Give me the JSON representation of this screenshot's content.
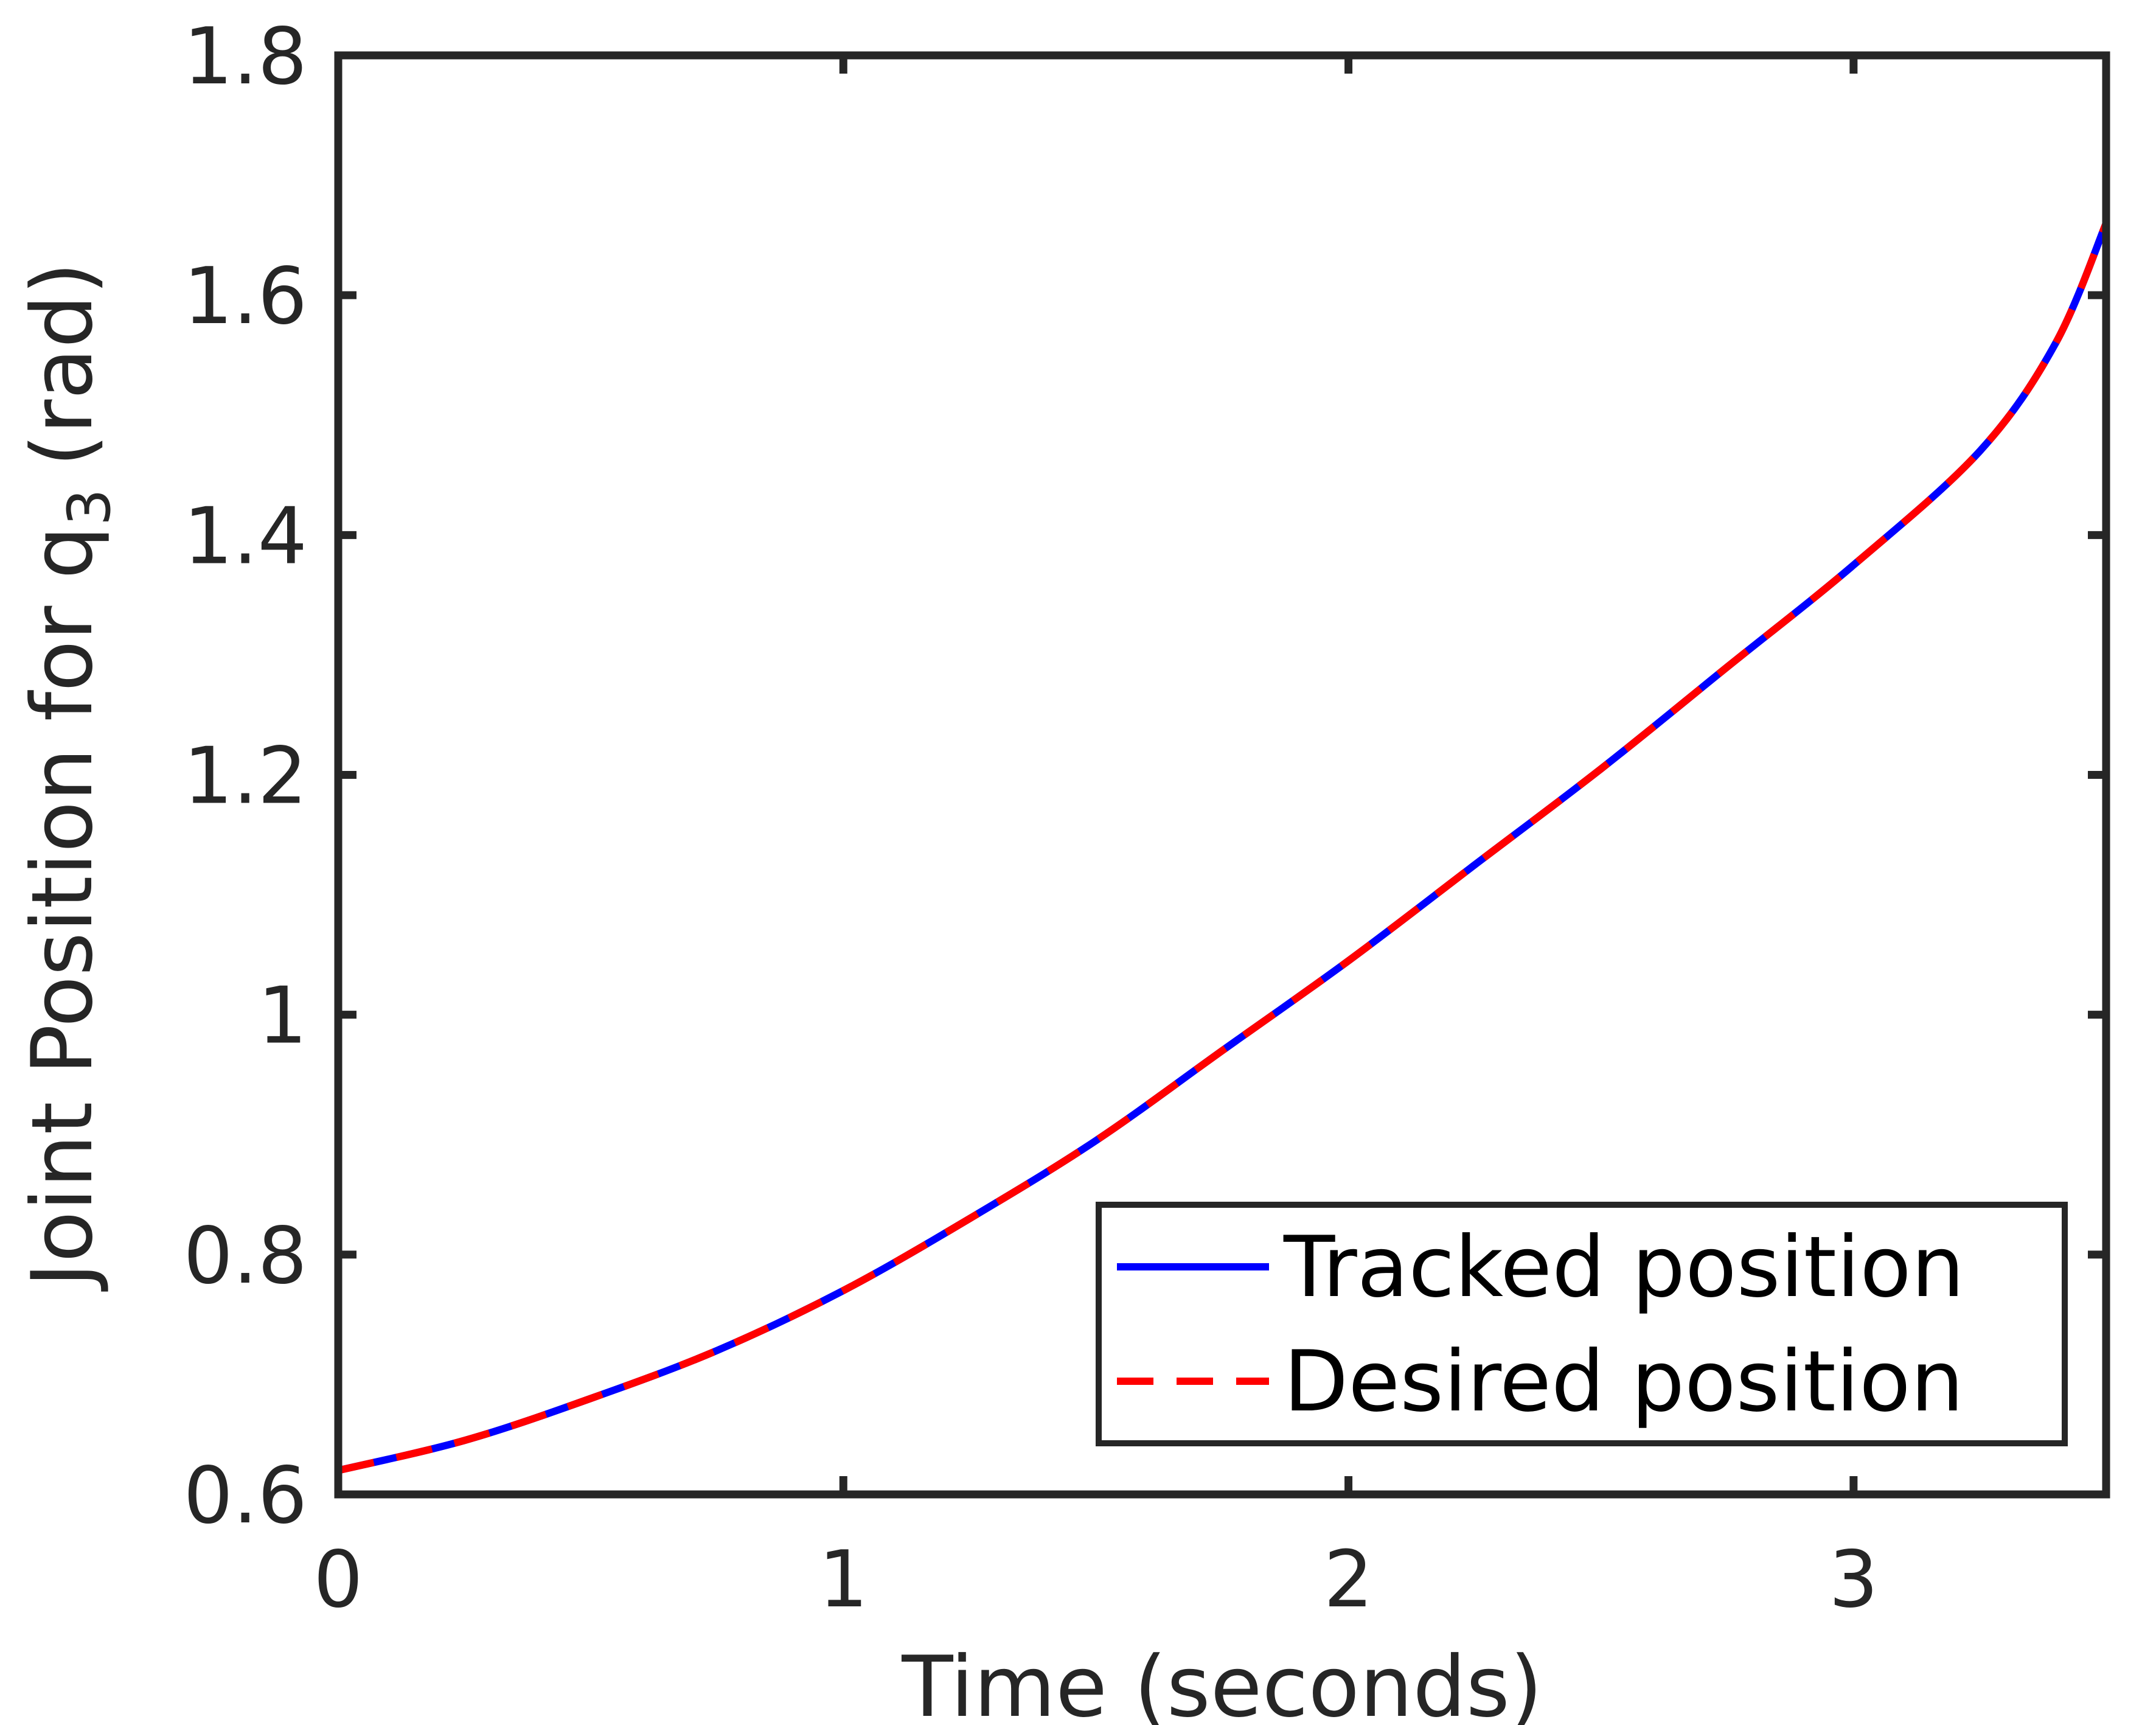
{
  "chart_data": {
    "type": "line",
    "title": "",
    "xlabel": "Time (seconds)",
    "ylabel_main": "Joint Position for q",
    "ylabel_sub": "3",
    "ylabel_unit": "(rad)",
    "xlim": [
      0,
      3.5
    ],
    "ylim": [
      0.6,
      1.8
    ],
    "xticks": [
      0,
      1,
      2,
      3
    ],
    "xtick_labels": [
      "0",
      "1",
      "2",
      "3"
    ],
    "yticks": [
      0.6,
      0.8,
      1.0,
      1.2,
      1.4,
      1.6,
      1.8
    ],
    "ytick_labels": [
      "0.6",
      "0.8",
      "1",
      "1.2",
      "1.4",
      "1.6",
      "1.8"
    ],
    "grid": false,
    "legend_position": "bottom-right",
    "x": [
      0,
      0.25,
      0.5,
      0.75,
      1.0,
      1.25,
      1.5,
      1.75,
      2.0,
      2.25,
      2.5,
      2.75,
      3.0,
      3.25,
      3.4,
      3.5
    ],
    "series": [
      {
        "name": "Tracked position",
        "color": "#0000ff",
        "style": "solid",
        "values": [
          0.62,
          0.645,
          0.68,
          0.72,
          0.77,
          0.83,
          0.895,
          0.97,
          1.045,
          1.125,
          1.205,
          1.29,
          1.375,
          1.47,
          1.56,
          1.66
        ]
      },
      {
        "name": "Desired position",
        "color": "#ff0000",
        "style": "dashed",
        "values": [
          0.62,
          0.645,
          0.68,
          0.72,
          0.77,
          0.83,
          0.895,
          0.97,
          1.045,
          1.125,
          1.205,
          1.29,
          1.375,
          1.47,
          1.56,
          1.66
        ]
      }
    ]
  }
}
